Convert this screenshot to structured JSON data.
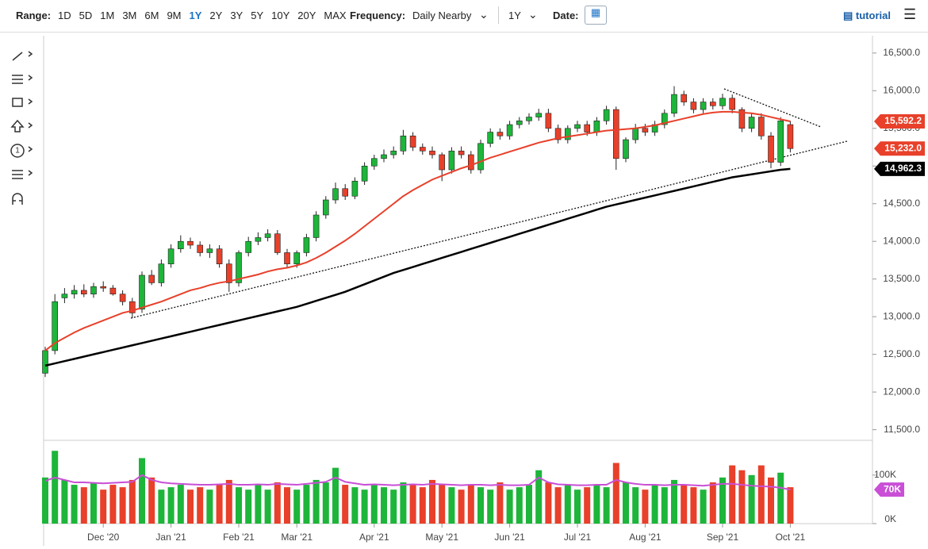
{
  "toolbar": {
    "range_label": "Range:",
    "ranges": [
      "1D",
      "5D",
      "1M",
      "3M",
      "6M",
      "9M",
      "1Y",
      "2Y",
      "3Y",
      "5Y",
      "10Y",
      "20Y",
      "MAX"
    ],
    "active_range": "1Y",
    "frequency_label": "Frequency:",
    "frequency": "Daily Nearby",
    "period": "1Y",
    "date_label": "Date:",
    "tutorial": "tutorial"
  },
  "chart_data": {
    "type": "candlestick",
    "categories": [
      null,
      null,
      null,
      null,
      null,
      null,
      "Dec '20",
      null,
      null,
      null,
      null,
      null,
      null,
      "Jan '21",
      null,
      null,
      null,
      null,
      null,
      null,
      "Feb '21",
      null,
      null,
      null,
      null,
      null,
      "Mar '21",
      null,
      null,
      null,
      null,
      null,
      null,
      null,
      "Apr '21",
      null,
      null,
      null,
      null,
      null,
      null,
      "May '21",
      null,
      null,
      null,
      null,
      null,
      null,
      "Jun '21",
      null,
      null,
      null,
      null,
      null,
      null,
      "Jul '21",
      null,
      null,
      null,
      null,
      null,
      null,
      "Aug '21",
      null,
      null,
      null,
      null,
      null,
      null,
      null,
      "Sep '21",
      null,
      null,
      null,
      null,
      null,
      null,
      "Oct '21"
    ],
    "open": [
      12250,
      12550,
      13250,
      13300,
      13350,
      13300,
      13400,
      13380,
      13300,
      13200,
      13100,
      13550,
      13450,
      13700,
      13900,
      14000,
      13950,
      13850,
      13900,
      13700,
      13450,
      13850,
      14000,
      14050,
      14100,
      13850,
      13700,
      13850,
      14050,
      14350,
      14550,
      14700,
      14600,
      14800,
      15000,
      15100,
      15150,
      15200,
      15400,
      15250,
      15200,
      15150,
      14950,
      15200,
      15150,
      14950,
      15300,
      15450,
      15400,
      15550,
      15600,
      15650,
      15700,
      15500,
      15350,
      15500,
      15550,
      15450,
      15600,
      15750,
      15100,
      15350,
      15500,
      15450,
      15550,
      15700,
      15950,
      15850,
      15750,
      15850,
      15800,
      15900,
      15750,
      15500,
      15650,
      15400,
      15050,
      15550
    ],
    "high": [
      12600,
      13300,
      13380,
      13420,
      13430,
      13450,
      13470,
      13420,
      13350,
      13250,
      13600,
      13620,
      13760,
      13960,
      14080,
      14050,
      14000,
      13960,
      13950,
      13760,
      13880,
      14060,
      14120,
      14160,
      14150,
      13900,
      13880,
      14100,
      14400,
      14600,
      14780,
      14760,
      14850,
      15050,
      15150,
      15220,
      15260,
      15480,
      15450,
      15300,
      15260,
      15180,
      15250,
      15260,
      15200,
      15350,
      15500,
      15500,
      15600,
      15650,
      15700,
      15760,
      15760,
      15550,
      15540,
      15600,
      15600,
      15650,
      15800,
      15790,
      15380,
      15560,
      15560,
      15600,
      15750,
      16060,
      16000,
      15900,
      15900,
      15900,
      15960,
      15950,
      15780,
      15700,
      15700,
      15450,
      15650,
      15600
    ],
    "low": [
      12200,
      12500,
      13180,
      13240,
      13260,
      13250,
      13330,
      13280,
      13150,
      12980,
      13050,
      13420,
      13400,
      13650,
      13850,
      13900,
      13800,
      13780,
      13650,
      13330,
      13400,
      13800,
      13950,
      14000,
      13820,
      13650,
      13650,
      13800,
      14000,
      14300,
      14500,
      14550,
      14560,
      14750,
      14950,
      15050,
      15100,
      15150,
      15200,
      15150,
      15100,
      14800,
      14900,
      15100,
      14900,
      14900,
      15250,
      15350,
      15350,
      15500,
      15550,
      15600,
      15450,
      15300,
      15300,
      15450,
      15400,
      15400,
      15550,
      14950,
      15050,
      15300,
      15400,
      15400,
      15500,
      15650,
      15800,
      15700,
      15700,
      15750,
      15750,
      15700,
      15450,
      15450,
      15350,
      14970,
      15000,
      15180
    ],
    "close": [
      12550,
      13200,
      13300,
      13350,
      13300,
      13400,
      13380,
      13300,
      13200,
      13050,
      13550,
      13450,
      13700,
      13900,
      14000,
      13950,
      13850,
      13900,
      13700,
      13450,
      13850,
      14000,
      14050,
      14100,
      13850,
      13700,
      13850,
      14050,
      14350,
      14550,
      14700,
      14600,
      14800,
      15000,
      15100,
      15150,
      15200,
      15400,
      15250,
      15200,
      15150,
      14950,
      15200,
      15150,
      14950,
      15300,
      15450,
      15400,
      15550,
      15600,
      15650,
      15700,
      15500,
      15350,
      15500,
      15550,
      15450,
      15600,
      15750,
      15100,
      15350,
      15500,
      15450,
      15550,
      15700,
      15950,
      15850,
      15750,
      15850,
      15800,
      15900,
      15750,
      15500,
      15650,
      15400,
      15050,
      15600,
      15232
    ],
    "up_color": "#1db53a",
    "down_color": "#e8402a",
    "moving_averages": [
      {
        "color": "#e8402a",
        "values": [
          12550,
          12650,
          12720,
          12790,
          12850,
          12900,
          12950,
          13000,
          13050,
          13080,
          13120,
          13160,
          13200,
          13250,
          13300,
          13350,
          13380,
          13420,
          13450,
          13470,
          13500,
          13530,
          13560,
          13600,
          13630,
          13650,
          13680,
          13720,
          13780,
          13850,
          13930,
          14010,
          14100,
          14200,
          14300,
          14400,
          14500,
          14600,
          14680,
          14750,
          14820,
          14870,
          14920,
          14970,
          15010,
          15060,
          15110,
          15150,
          15190,
          15230,
          15270,
          15310,
          15340,
          15370,
          15390,
          15410,
          15430,
          15450,
          15470,
          15480,
          15490,
          15500,
          15520,
          15540,
          15570,
          15600,
          15630,
          15660,
          15690,
          15710,
          15720,
          15720,
          15710,
          15700,
          15680,
          15650,
          15620,
          15592.2
        ]
      },
      {
        "color": "#000000",
        "values": [
          12350,
          12380,
          12410,
          12440,
          12470,
          12500,
          12530,
          12560,
          12590,
          12620,
          12650,
          12680,
          12710,
          12740,
          12770,
          12800,
          12830,
          12860,
          12890,
          12920,
          12950,
          12980,
          13010,
          13040,
          13070,
          13100,
          13130,
          13170,
          13210,
          13250,
          13290,
          13330,
          13380,
          13430,
          13480,
          13530,
          13580,
          13620,
          13660,
          13700,
          13740,
          13780,
          13820,
          13860,
          13900,
          13940,
          13980,
          14020,
          14060,
          14100,
          14140,
          14180,
          14220,
          14260,
          14300,
          14340,
          14380,
          14420,
          14460,
          14490,
          14520,
          14550,
          14580,
          14610,
          14640,
          14670,
          14700,
          14730,
          14760,
          14790,
          14820,
          14850,
          14870,
          14890,
          14910,
          14930,
          14950,
          14962.3
        ]
      }
    ],
    "markers": [
      {
        "value": 15592.2,
        "label": "15,592.2",
        "color": "#e8402a"
      },
      {
        "value": 15232,
        "label": "15,232.0",
        "color": "#e8402a"
      },
      {
        "value": 14962.3,
        "label": "14,962.3",
        "color": "#000000"
      }
    ],
    "ylim": [
      11380,
      16730
    ],
    "yticks": [
      {
        "value": 11500,
        "label": "11,500.0"
      },
      {
        "value": 12000,
        "label": "12,000.0"
      },
      {
        "value": 12500,
        "label": "12,500.0"
      },
      {
        "value": 13000,
        "label": "13,000.0"
      },
      {
        "value": 13500,
        "label": "13,500.0"
      },
      {
        "value": 14000,
        "label": "14,000.0"
      },
      {
        "value": 14500,
        "label": "14,500.0"
      },
      {
        "value": 15000,
        "label": "15,000.0"
      },
      {
        "value": 15500,
        "label": "15,500.0"
      },
      {
        "value": 16000,
        "label": "16,000.0"
      },
      {
        "value": 16500,
        "label": "16,500.0"
      }
    ],
    "volume": [
      95000,
      150000,
      90000,
      80000,
      75000,
      85000,
      70000,
      80000,
      75000,
      90000,
      135000,
      95000,
      70000,
      75000,
      80000,
      70000,
      75000,
      70000,
      80000,
      90000,
      75000,
      70000,
      80000,
      70000,
      85000,
      75000,
      70000,
      80000,
      90000,
      85000,
      115000,
      80000,
      75000,
      70000,
      80000,
      75000,
      70000,
      85000,
      80000,
      75000,
      90000,
      80000,
      75000,
      70000,
      80000,
      75000,
      70000,
      85000,
      70000,
      75000,
      80000,
      110000,
      85000,
      75000,
      80000,
      70000,
      75000,
      80000,
      75000,
      125000,
      85000,
      75000,
      70000,
      80000,
      75000,
      90000,
      80000,
      75000,
      70000,
      85000,
      95000,
      120000,
      110000,
      100000,
      120000,
      95000,
      105000,
      75000
    ],
    "volume_ma": {
      "color": "#c94fd6",
      "values": [
        88000,
        95000,
        90000,
        85000,
        85000,
        84000,
        83000,
        84000,
        85000,
        86000,
        100000,
        90000,
        85000,
        83000,
        82000,
        81000,
        80000,
        80000,
        81000,
        82000,
        80000,
        80000,
        81000,
        80000,
        82000,
        81000,
        80000,
        82000,
        84000,
        86000,
        95000,
        86000,
        83000,
        80000,
        81000,
        80000,
        79000,
        80000,
        81000,
        80000,
        82000,
        81000,
        80000,
        79000,
        80000,
        80000,
        79000,
        80000,
        79000,
        79000,
        80000,
        95000,
        85000,
        81000,
        80000,
        79000,
        79000,
        80000,
        80000,
        90000,
        85000,
        82000,
        80000,
        80000,
        79000,
        80000,
        80000,
        79000,
        78000,
        80000,
        82000,
        82000,
        80000,
        78000,
        77000,
        76000,
        74000,
        70000
      ],
      "value_labels_last": "70K"
    },
    "vol_ylim": [
      0,
      170000
    ],
    "vol_yticks": [
      {
        "value": 0,
        "label": "0K"
      },
      {
        "value": 100000,
        "label": "100K"
      }
    ]
  }
}
